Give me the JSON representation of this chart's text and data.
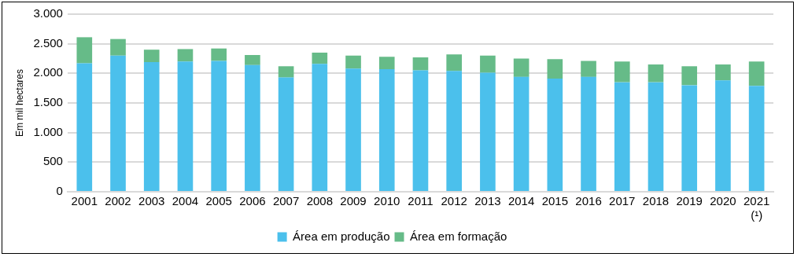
{
  "chart_data": {
    "type": "bar",
    "stacked": true,
    "ylabel": "Em mil hectares",
    "categories": [
      "2001",
      "2002",
      "2003",
      "2004",
      "2005",
      "2006",
      "2007",
      "2008",
      "2009",
      "2010",
      "2011",
      "2012",
      "2013",
      "2014",
      "2015",
      "2016",
      "2017",
      "2018",
      "2019",
      "2020",
      "2021\n(¹)"
    ],
    "series": [
      {
        "name": "Área em produção",
        "color": "#4bc0ec",
        "values": [
          2170,
          2300,
          2190,
          2200,
          2210,
          2140,
          1930,
          2160,
          2080,
          2070,
          2050,
          2040,
          2010,
          1940,
          1910,
          1940,
          1850,
          1850,
          1800,
          1880,
          1790
        ]
      },
      {
        "name": "Área em formação",
        "color": "#66bb88",
        "values": [
          440,
          280,
          210,
          210,
          210,
          170,
          190,
          190,
          220,
          210,
          220,
          280,
          290,
          310,
          330,
          270,
          350,
          300,
          320,
          270,
          410
        ]
      }
    ],
    "ylim": [
      0,
      3000
    ],
    "yticks": [
      {
        "value": 0,
        "label": "0"
      },
      {
        "value": 500,
        "label": "500"
      },
      {
        "value": 1000,
        "label": "1.000"
      },
      {
        "value": 1500,
        "label": "1.500"
      },
      {
        "value": 2000,
        "label": "2.000"
      },
      {
        "value": 2500,
        "label": "2.500"
      },
      {
        "value": 3000,
        "label": "3.000"
      }
    ],
    "grid": "y",
    "legend": "bottom"
  }
}
